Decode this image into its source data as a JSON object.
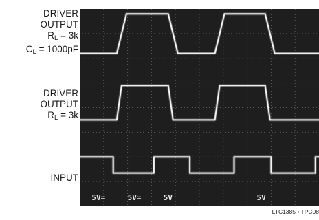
{
  "labels": {
    "trace1": {
      "line1": "DRIVER",
      "line2": "OUTPUT",
      "rl_prefix": "R",
      "rl_sub": "L",
      "rl_value": " = 3k",
      "cl_prefix": "C",
      "cl_sub": "L",
      "cl_value": " =  1000pF"
    },
    "trace2": {
      "line1": "DRIVER",
      "line2": "OUTPUT",
      "rl_prefix": "R",
      "rl_sub": "L",
      "rl_value": " = 3k"
    },
    "trace3": {
      "line1": "INPUT"
    }
  },
  "scale_labels": [
    "5V=",
    "5V=",
    "5V",
    "5V"
  ],
  "figure_id": "LTC1385 • TPC08",
  "colors": {
    "screen": "#1e1e1e",
    "graticule": "#5a5a5a",
    "trace": "#f2f2f2",
    "scale_text": "#e8e8e8"
  },
  "chart_data": {
    "type": "line",
    "title": "",
    "grid": true,
    "x_divisions": 10,
    "y_divisions": 8,
    "series": [
      {
        "name": "DRIVER OUTPUT RL = 3k CL = 1000pF",
        "x": [
          0,
          1.55,
          1.75,
          1.95,
          3.7,
          3.9,
          4.1,
          5.65,
          5.85,
          6.05,
          7.75,
          7.95,
          8.15,
          10
        ],
        "y": [
          6.2,
          6.2,
          7.0,
          7.8,
          7.8,
          7.0,
          6.2,
          6.2,
          7.0,
          7.8,
          7.8,
          7.0,
          6.2,
          6.2
        ]
      },
      {
        "name": "DRIVER OUTPUT RL = 3k",
        "x": [
          0,
          1.55,
          1.65,
          1.75,
          3.7,
          3.8,
          3.9,
          5.65,
          5.75,
          5.85,
          7.75,
          7.85,
          7.95,
          10
        ],
        "y": [
          3.5,
          3.5,
          4.2,
          4.9,
          4.9,
          4.2,
          3.5,
          3.5,
          4.2,
          4.9,
          4.9,
          4.2,
          3.5,
          3.5
        ]
      },
      {
        "name": "INPUT",
        "x": [
          0,
          1.4,
          1.4,
          3.1,
          3.1,
          4.6,
          4.6,
          6.45,
          6.45,
          8.0,
          8.0,
          9.85,
          9.85,
          10
        ],
        "y": [
          2.0,
          2.0,
          1.35,
          1.35,
          2.0,
          2.0,
          1.35,
          1.35,
          2.0,
          2.0,
          1.35,
          1.35,
          2.0,
          2.0
        ]
      }
    ]
  }
}
